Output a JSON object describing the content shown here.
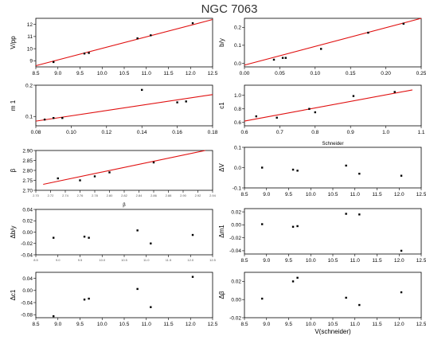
{
  "title": "NGC 7063",
  "chart_data": [
    {
      "id": "p1",
      "type": "scatter",
      "xlim": [
        8.5,
        12.5
      ],
      "ylim": [
        8.5,
        12.5
      ],
      "xticks": [
        "8.5",
        "9.0",
        "9.5",
        "10.0",
        "10.5",
        "11.0",
        "11.5",
        "12.0",
        "12.5"
      ],
      "yticks": [
        "9",
        "10",
        "11",
        "12"
      ],
      "xlabel": "",
      "ylabel": "V/pp",
      "points": [
        [
          8.9,
          8.9
        ],
        [
          9.6,
          9.6
        ],
        [
          9.7,
          9.65
        ],
        [
          10.8,
          10.85
        ],
        [
          11.1,
          11.1
        ],
        [
          12.05,
          12.1
        ]
      ],
      "fit": [
        [
          8.5,
          8.6
        ],
        [
          12.5,
          12.4
        ]
      ]
    },
    {
      "id": "p2",
      "type": "scatter",
      "xlim": [
        -0.05,
        0.25
      ],
      "ylim": [
        -0.02,
        0.25
      ],
      "xticks": [
        "0.00",
        "0.05",
        "0.10",
        "0.15",
        "0.20",
        "0.25"
      ],
      "yticks": [
        "0.0",
        "0.1",
        "0.2"
      ],
      "xlabel": "",
      "ylabel": "b/y",
      "points": [
        [
          0.0,
          0.02
        ],
        [
          0.015,
          0.03
        ],
        [
          0.02,
          0.03
        ],
        [
          0.08,
          0.08
        ],
        [
          0.16,
          0.17
        ],
        [
          0.22,
          0.22
        ]
      ],
      "fit": [
        [
          -0.05,
          -0.01
        ],
        [
          0.25,
          0.25
        ]
      ]
    },
    {
      "id": "p3",
      "type": "scatter",
      "xlim": [
        0.08,
        0.18
      ],
      "ylim": [
        0.07,
        0.2
      ],
      "xticks": [
        "0.08",
        "0.10",
        "0.12",
        "0.14",
        "0.16",
        "0.18"
      ],
      "yticks": [
        "0.1",
        "0.2"
      ],
      "xlabel": "",
      "ylabel": "m 1",
      "points": [
        [
          0.085,
          0.09
        ],
        [
          0.09,
          0.095
        ],
        [
          0.095,
          0.095
        ],
        [
          0.14,
          0.185
        ],
        [
          0.16,
          0.145
        ],
        [
          0.165,
          0.148
        ]
      ],
      "fit": [
        [
          0.08,
          0.085
        ],
        [
          0.18,
          0.17
        ]
      ]
    },
    {
      "id": "p4",
      "type": "scatter",
      "xlim": [
        0.55,
        1.15
      ],
      "ylim": [
        0.55,
        1.15
      ],
      "xticks": [
        "0.6",
        "0.7",
        "0.8",
        "0.9",
        "1.0",
        "1.1"
      ],
      "yticks": [
        "0.6",
        "0.8",
        "1.0"
      ],
      "xlabel": "",
      "ylabel": "c1",
      "points": [
        [
          0.59,
          0.69
        ],
        [
          0.66,
          0.67
        ],
        [
          0.77,
          0.8
        ],
        [
          0.79,
          0.75
        ],
        [
          0.92,
          0.99
        ],
        [
          1.06,
          1.05
        ]
      ],
      "fit": [
        [
          0.55,
          0.62
        ],
        [
          1.12,
          1.08
        ]
      ]
    },
    {
      "id": "p5",
      "type": "scatter",
      "xlim": [
        2.7,
        2.94
      ],
      "ylim": [
        2.7,
        2.9
      ],
      "xticks": [
        "2.70",
        "2.72",
        "2.74",
        "2.76",
        "2.78",
        "2.80",
        "2.82",
        "2.84",
        "2.86",
        "2.88",
        "2.90",
        "2.92",
        "2.94"
      ],
      "yticks": [
        "2.70",
        "2.75",
        "2.80",
        "2.85",
        "2.90"
      ],
      "xlabel": "β",
      "ylabel": "β",
      "points": [
        [
          2.73,
          2.76
        ],
        [
          2.76,
          2.75
        ],
        [
          2.78,
          2.77
        ],
        [
          2.8,
          2.79
        ],
        [
          2.86,
          2.84
        ]
      ],
      "fit": [
        [
          2.71,
          2.73
        ],
        [
          2.93,
          2.9
        ]
      ]
    },
    {
      "id": "p6",
      "type": "scatter",
      "xlim": [
        8.5,
        12.5
      ],
      "ylim": [
        -0.1,
        0.1
      ],
      "xticks": [
        "8.5",
        "9.0",
        "9.5",
        "10.0",
        "10.5",
        "11.0",
        "11.5",
        "12.0",
        "12.5"
      ],
      "yticks": [
        "0.1",
        "0.0",
        "-0.1"
      ],
      "xlabel": "",
      "ylabel": "ΔV",
      "top_label": "Schneider",
      "points": [
        [
          8.9,
          0.0
        ],
        [
          9.6,
          -0.01
        ],
        [
          9.7,
          -0.015
        ],
        [
          10.8,
          0.01
        ],
        [
          11.1,
          -0.03
        ],
        [
          12.05,
          -0.04
        ]
      ]
    },
    {
      "id": "p7",
      "type": "scatter",
      "xlim": [
        8.5,
        12.5
      ],
      "ylim": [
        -0.04,
        0.04
      ],
      "xticks": [
        "8.5",
        "9.0",
        "9.5",
        "10.0",
        "10.5",
        "11.0",
        "11.5",
        "12.0",
        "12.5"
      ],
      "yticks": [
        "0.04",
        "0.02",
        "0.00",
        "-0.02",
        "-0.04"
      ],
      "xlabel": "",
      "ylabel": "Δb/y",
      "points": [
        [
          8.9,
          -0.01
        ],
        [
          9.6,
          -0.008
        ],
        [
          9.7,
          -0.01
        ],
        [
          10.8,
          0.003
        ],
        [
          11.1,
          -0.02
        ],
        [
          12.05,
          -0.005
        ]
      ]
    },
    {
      "id": "p8",
      "type": "scatter",
      "xlim": [
        8.5,
        12.5
      ],
      "ylim": [
        -0.045,
        0.025
      ],
      "xticks": [
        "8.5",
        "9.0",
        "9.5",
        "10.0",
        "10.5",
        "11.0",
        "11.5",
        "12.0",
        "12.5"
      ],
      "yticks": [
        "0.02",
        "0.00",
        "-0.02",
        "-0.04"
      ],
      "xlabel": "",
      "ylabel": "Δm1",
      "points": [
        [
          8.9,
          0.001
        ],
        [
          9.6,
          -0.003
        ],
        [
          9.7,
          -0.002
        ],
        [
          10.8,
          0.017
        ],
        [
          11.1,
          0.016
        ],
        [
          12.05,
          -0.04
        ]
      ]
    },
    {
      "id": "p9",
      "type": "scatter",
      "xlim": [
        8.5,
        12.5
      ],
      "ylim": [
        -0.09,
        0.06
      ],
      "xticks": [
        "8.5",
        "9.0",
        "9.5",
        "10.0",
        "10.5",
        "11.0",
        "11.5",
        "12.0",
        "12.5"
      ],
      "yticks": [
        "0.04",
        "0.00",
        "-0.04",
        "-0.08"
      ],
      "xlabel": "",
      "ylabel": "Δc1",
      "points": [
        [
          8.9,
          -0.085
        ],
        [
          9.6,
          -0.03
        ],
        [
          9.7,
          -0.027
        ],
        [
          10.8,
          0.005
        ],
        [
          11.1,
          -0.055
        ],
        [
          12.05,
          0.045
        ]
      ]
    },
    {
      "id": "p10",
      "type": "scatter",
      "xlim": [
        8.5,
        12.5
      ],
      "ylim": [
        -0.02,
        0.03
      ],
      "xticks": [
        "8.5",
        "9.0",
        "9.5",
        "10.0",
        "10.5",
        "11.0",
        "11.5",
        "12.0",
        "12.5"
      ],
      "yticks": [
        "0.02",
        "0.00",
        "-0.02"
      ],
      "xlabel": "V(schneider)",
      "ylabel": "Δβ",
      "points": [
        [
          8.9,
          0.001
        ],
        [
          9.6,
          0.02
        ],
        [
          9.7,
          0.024
        ],
        [
          10.8,
          0.002
        ],
        [
          11.1,
          -0.006
        ],
        [
          12.05,
          0.008
        ]
      ]
    }
  ]
}
